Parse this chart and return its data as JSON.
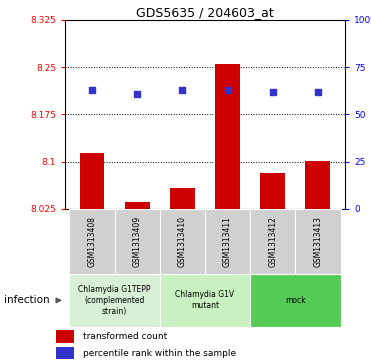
{
  "title": "GDS5635 / 204603_at",
  "samples": [
    "GSM1313408",
    "GSM1313409",
    "GSM1313410",
    "GSM1313411",
    "GSM1313412",
    "GSM1313413"
  ],
  "bar_values": [
    8.113,
    8.035,
    8.058,
    8.255,
    8.082,
    8.101
  ],
  "pct_vals": [
    63,
    61,
    63,
    63,
    62,
    62
  ],
  "bar_color": "#cc0000",
  "dot_color": "#3333cc",
  "ylim_left": [
    8.025,
    8.325
  ],
  "ylim_right": [
    0,
    100
  ],
  "yticks_left": [
    8.025,
    8.1,
    8.175,
    8.25,
    8.325
  ],
  "ytick_labels_left": [
    "8.025",
    "8.1",
    "8.175",
    "8.25",
    "8.325"
  ],
  "yticks_right": [
    0,
    25,
    50,
    75,
    100
  ],
  "ytick_labels_right": [
    "0",
    "25",
    "50",
    "75",
    "100%"
  ],
  "grid_lines": [
    8.1,
    8.175,
    8.25
  ],
  "group_configs": [
    {
      "start": 0,
      "end": 1,
      "label": "Chlamydia G1TEPP\n(complemented\nstrain)",
      "color": "#d8f0d8"
    },
    {
      "start": 2,
      "end": 3,
      "label": "Chlamydia G1V\nmutant",
      "color": "#c8f0c0"
    },
    {
      "start": 4,
      "end": 5,
      "label": "mock",
      "color": "#55cc55"
    }
  ],
  "base_value": 8.025,
  "legend_bar_label": "transformed count",
  "legend_dot_label": "percentile rank within the sample",
  "infection_label": "infection"
}
